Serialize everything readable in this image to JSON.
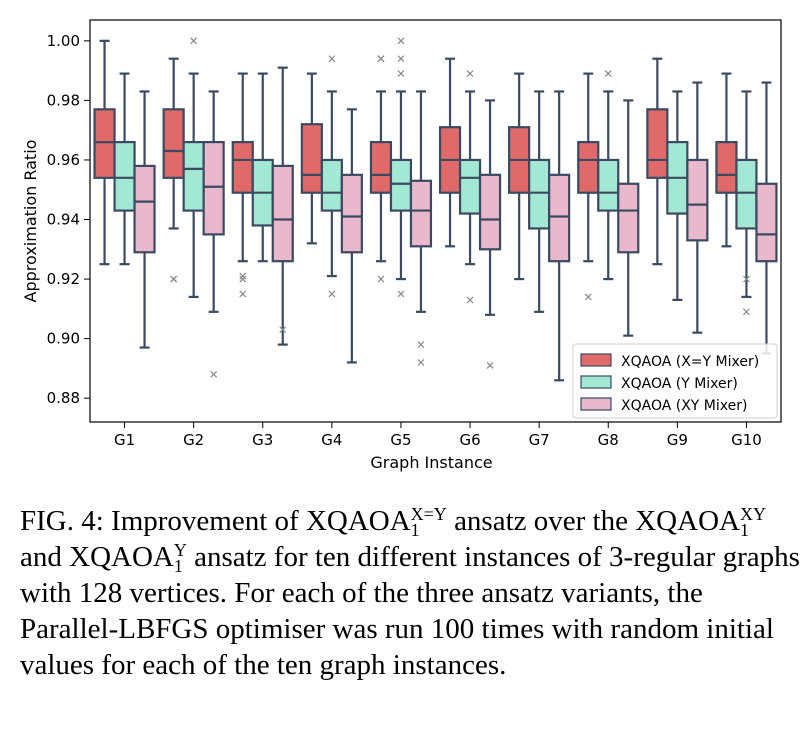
{
  "chart_data": {
    "type": "box",
    "xlabel": "Graph Instance",
    "ylabel": "Approximation Ratio",
    "ylim": [
      0.872,
      1.007
    ],
    "yticks": [
      "0.88",
      "0.90",
      "0.92",
      "0.94",
      "0.96",
      "0.98",
      "1.00"
    ],
    "ytick_values": [
      0.88,
      0.9,
      0.92,
      0.94,
      0.96,
      0.98,
      1.0
    ],
    "categories": [
      "G1",
      "G2",
      "G3",
      "G4",
      "G5",
      "G6",
      "G7",
      "G8",
      "G9",
      "G10"
    ],
    "legend_position": "lower-right",
    "series": [
      {
        "name": "XQAOA (X=Y Mixer)",
        "color": "#e06a6a",
        "boxes": [
          {
            "whislo": 0.925,
            "q1": 0.954,
            "med": 0.966,
            "q3": 0.977,
            "whishi": 1.0,
            "fliers": []
          },
          {
            "whislo": 0.937,
            "q1": 0.954,
            "med": 0.963,
            "q3": 0.977,
            "whishi": 0.994,
            "fliers": [
              0.92,
              0.92
            ]
          },
          {
            "whislo": 0.926,
            "q1": 0.949,
            "med": 0.96,
            "q3": 0.966,
            "whishi": 0.989,
            "fliers": [
              0.921,
              0.92,
              0.915
            ]
          },
          {
            "whislo": 0.932,
            "q1": 0.949,
            "med": 0.955,
            "q3": 0.972,
            "whishi": 0.989,
            "fliers": []
          },
          {
            "whislo": 0.926,
            "q1": 0.949,
            "med": 0.955,
            "q3": 0.966,
            "whishi": 0.983,
            "fliers": [
              0.994,
              0.994,
              0.92
            ]
          },
          {
            "whislo": 0.931,
            "q1": 0.949,
            "med": 0.96,
            "q3": 0.971,
            "whishi": 0.994,
            "fliers": []
          },
          {
            "whislo": 0.92,
            "q1": 0.949,
            "med": 0.96,
            "q3": 0.971,
            "whishi": 0.989,
            "fliers": []
          },
          {
            "whislo": 0.926,
            "q1": 0.949,
            "med": 0.96,
            "q3": 0.966,
            "whishi": 0.989,
            "fliers": [
              0.914
            ]
          },
          {
            "whislo": 0.925,
            "q1": 0.954,
            "med": 0.96,
            "q3": 0.977,
            "whishi": 0.994,
            "fliers": []
          },
          {
            "whislo": 0.931,
            "q1": 0.949,
            "med": 0.955,
            "q3": 0.966,
            "whishi": 0.989,
            "fliers": []
          }
        ]
      },
      {
        "name": "XQAOA (Y Mixer)",
        "color": "#a2e8d4",
        "boxes": [
          {
            "whislo": 0.925,
            "q1": 0.943,
            "med": 0.954,
            "q3": 0.966,
            "whishi": 0.989,
            "fliers": []
          },
          {
            "whislo": 0.914,
            "q1": 0.943,
            "med": 0.957,
            "q3": 0.966,
            "whishi": 0.989,
            "fliers": [
              1.0
            ]
          },
          {
            "whislo": 0.926,
            "q1": 0.938,
            "med": 0.949,
            "q3": 0.96,
            "whishi": 0.989,
            "fliers": []
          },
          {
            "whislo": 0.921,
            "q1": 0.943,
            "med": 0.949,
            "q3": 0.96,
            "whishi": 0.983,
            "fliers": [
              0.994,
              0.915
            ]
          },
          {
            "whislo": 0.92,
            "q1": 0.943,
            "med": 0.952,
            "q3": 0.96,
            "whishi": 0.983,
            "fliers": [
              1.0,
              0.994,
              0.989,
              0.915
            ]
          },
          {
            "whislo": 0.925,
            "q1": 0.942,
            "med": 0.954,
            "q3": 0.96,
            "whishi": 0.983,
            "fliers": [
              0.989,
              0.913
            ]
          },
          {
            "whislo": 0.909,
            "q1": 0.937,
            "med": 0.949,
            "q3": 0.96,
            "whishi": 0.983,
            "fliers": []
          },
          {
            "whislo": 0.92,
            "q1": 0.943,
            "med": 0.949,
            "q3": 0.96,
            "whishi": 0.983,
            "fliers": [
              0.989
            ]
          },
          {
            "whislo": 0.913,
            "q1": 0.942,
            "med": 0.954,
            "q3": 0.966,
            "whishi": 0.983,
            "fliers": []
          },
          {
            "whislo": 0.914,
            "q1": 0.937,
            "med": 0.949,
            "q3": 0.96,
            "whishi": 0.983,
            "fliers": [
              0.92,
              0.909
            ]
          }
        ]
      },
      {
        "name": "XQAOA (XY Mixer)",
        "color": "#eab8cc",
        "boxes": [
          {
            "whislo": 0.897,
            "q1": 0.929,
            "med": 0.946,
            "q3": 0.958,
            "whishi": 0.983,
            "fliers": []
          },
          {
            "whislo": 0.909,
            "q1": 0.935,
            "med": 0.951,
            "q3": 0.966,
            "whishi": 0.983,
            "fliers": [
              0.888
            ]
          },
          {
            "whislo": 0.898,
            "q1": 0.926,
            "med": 0.94,
            "q3": 0.958,
            "whishi": 0.991,
            "fliers": [
              0.903
            ]
          },
          {
            "whislo": 0.892,
            "q1": 0.929,
            "med": 0.941,
            "q3": 0.955,
            "whishi": 0.977,
            "fliers": []
          },
          {
            "whislo": 0.909,
            "q1": 0.931,
            "med": 0.943,
            "q3": 0.953,
            "whishi": 0.983,
            "fliers": [
              0.898,
              0.892
            ]
          },
          {
            "whislo": 0.908,
            "q1": 0.93,
            "med": 0.94,
            "q3": 0.955,
            "whishi": 0.98,
            "fliers": [
              0.891
            ]
          },
          {
            "whislo": 0.886,
            "q1": 0.926,
            "med": 0.941,
            "q3": 0.955,
            "whishi": 0.983,
            "fliers": []
          },
          {
            "whislo": 0.901,
            "q1": 0.929,
            "med": 0.943,
            "q3": 0.952,
            "whishi": 0.98,
            "fliers": []
          },
          {
            "whislo": 0.902,
            "q1": 0.933,
            "med": 0.945,
            "q3": 0.96,
            "whishi": 0.986,
            "fliers": []
          },
          {
            "whislo": 0.895,
            "q1": 0.926,
            "med": 0.935,
            "q3": 0.952,
            "whishi": 0.986,
            "fliers": []
          }
        ]
      }
    ]
  },
  "caption": {
    "fig_label": "FIG. 4:",
    "text1": "Improvement of",
    "xq_base": "XQAOA",
    "sub": "1",
    "sup_xy_eq": "X=Y",
    "text2": "ansatz over the",
    "sup_xy": "XY",
    "text3": "and",
    "sup_y": "Y",
    "text4": "ansatz for ten different instances of 3-regular graphs with 128 vertices. For each of the three ansatz variants, the Parallel-LBFGS optimiser was run 100 times with random initial values for each of the ten graph instances."
  },
  "colors": {
    "edge": "#3b4a60",
    "flier": "#8a8a8a"
  }
}
